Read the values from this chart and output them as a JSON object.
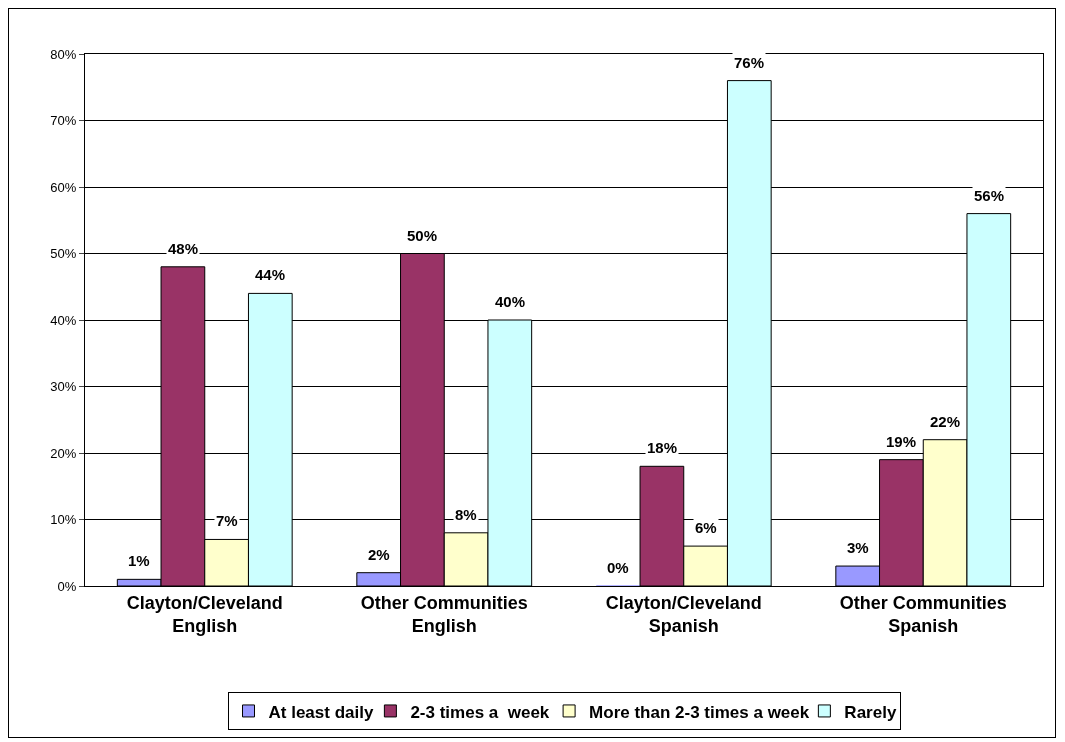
{
  "chart_data": {
    "type": "bar",
    "categories": [
      "Clayton/Cleveland\nEnglish",
      "Other Communities\nEnglish",
      "Clayton/Cleveland\nSpanish",
      "Other Communities\nSpanish"
    ],
    "series": [
      {
        "name": "At least daily",
        "color": "#9999ff",
        "values": [
          1,
          2,
          0,
          3
        ],
        "value_labels": [
          "1%",
          "2%",
          "0%",
          "3%"
        ]
      },
      {
        "name": "2-3 times a  week",
        "color": "#993366",
        "values": [
          48,
          50,
          18,
          19
        ],
        "value_labels": [
          "48%",
          "50%",
          "18%",
          "19%"
        ]
      },
      {
        "name": "More than 2-3 times a week",
        "color": "#ffffcc",
        "values": [
          7,
          8,
          6,
          22
        ],
        "value_labels": [
          "7%",
          "8%",
          "6%",
          "22%"
        ]
      },
      {
        "name": "Rarely",
        "color": "#ccffff",
        "values": [
          44,
          40,
          76,
          56
        ],
        "value_labels": [
          "44%",
          "40%",
          "76%",
          "56%"
        ]
      }
    ],
    "ylim": [
      0,
      80
    ],
    "yticks": [
      {
        "value": 0,
        "label": "0%"
      },
      {
        "value": 10,
        "label": "10%"
      },
      {
        "value": 20,
        "label": "20%"
      },
      {
        "value": 30,
        "label": "30%"
      },
      {
        "value": 40,
        "label": "40%"
      },
      {
        "value": 50,
        "label": "50%"
      },
      {
        "value": 60,
        "label": "60%"
      },
      {
        "value": 70,
        "label": "70%"
      },
      {
        "value": 80,
        "label": "80%"
      }
    ],
    "grid": "y",
    "legend": "bottom"
  }
}
